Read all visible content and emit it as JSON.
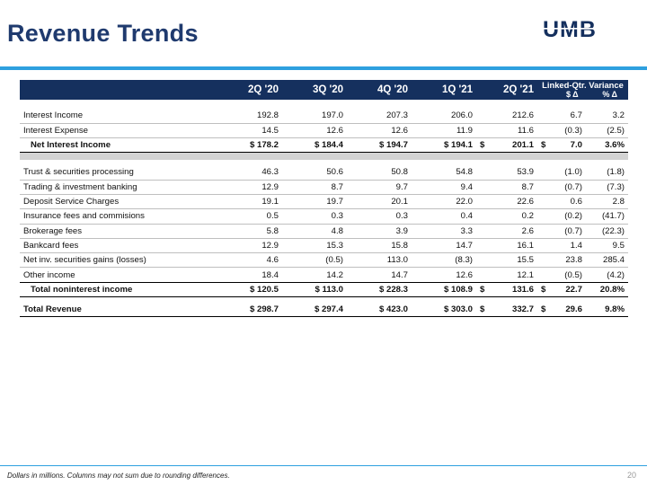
{
  "slide": {
    "title": "Revenue Trends",
    "logo_text": "UMB",
    "footnote": "Dollars in millions. Columns may not sum due to rounding differences.",
    "page_number": "20"
  },
  "colors": {
    "title": "#1f3a6e",
    "header_bg": "#15305e",
    "accent_rule": "#2ea0df",
    "gray_band": "#d3d3d3"
  },
  "table": {
    "columns": [
      "2Q '20",
      "3Q '20",
      "4Q '20",
      "1Q '21",
      "2Q '21"
    ],
    "variance_header": "Linked-Qtr. Variance",
    "variance_sub": [
      "$ Δ",
      "% Δ"
    ],
    "rows": {
      "interest_income": {
        "label": "Interest Income",
        "v": [
          "192.8",
          "197.0",
          "207.3",
          "206.0",
          "212.6"
        ],
        "d": "6.7",
        "p": "3.2"
      },
      "interest_expense": {
        "label": "Interest Expense",
        "v": [
          "14.5",
          "12.6",
          "12.6",
          "11.9",
          "11.6"
        ],
        "d": "(0.3)",
        "p": "(2.5)"
      },
      "net_interest_income": {
        "label": "Net Interest Income",
        "v": [
          "$ 178.2",
          "$ 184.4",
          "$ 194.7",
          "$ 194.1"
        ],
        "cur_sym": "$",
        "cur": "201.1",
        "d_sym": "$",
        "d": "7.0",
        "p": "3.6%"
      },
      "trust": {
        "label": "Trust & securities processing",
        "v": [
          "46.3",
          "50.6",
          "50.8",
          "54.8",
          "53.9"
        ],
        "d": "(1.0)",
        "p": "(1.8)"
      },
      "trading": {
        "label": "Trading & investment banking",
        "v": [
          "12.9",
          "8.7",
          "9.7",
          "9.4",
          "8.7"
        ],
        "d": "(0.7)",
        "p": "(7.3)"
      },
      "deposit": {
        "label": "Deposit Service Charges",
        "v": [
          "19.1",
          "19.7",
          "20.1",
          "22.0",
          "22.6"
        ],
        "d": "0.6",
        "p": "2.8"
      },
      "insurance": {
        "label": "Insurance fees and commisions",
        "v": [
          "0.5",
          "0.3",
          "0.3",
          "0.4",
          "0.2"
        ],
        "d": "(0.2)",
        "p": "(41.7)"
      },
      "brokerage": {
        "label": "Brokerage fees",
        "v": [
          "5.8",
          "4.8",
          "3.9",
          "3.3",
          "2.6"
        ],
        "d": "(0.7)",
        "p": "(22.3)"
      },
      "bankcard": {
        "label": "Bankcard fees",
        "v": [
          "12.9",
          "15.3",
          "15.8",
          "14.7",
          "16.1"
        ],
        "d": "1.4",
        "p": "9.5"
      },
      "securities_gains": {
        "label": "Net inv. securities gains (losses)",
        "v": [
          "4.6",
          "(0.5)",
          "113.0",
          "(8.3)",
          "15.5"
        ],
        "d": "23.8",
        "p": "285.4"
      },
      "other": {
        "label": "Other income",
        "v": [
          "18.4",
          "14.2",
          "14.7",
          "12.6",
          "12.1"
        ],
        "d": "(0.5)",
        "p": "(4.2)"
      },
      "total_nonint": {
        "label": "Total noninterest income",
        "v": [
          "$ 120.5",
          "$ 113.0",
          "$ 228.3",
          "$ 108.9"
        ],
        "cur_sym": "$",
        "cur": "131.6",
        "d_sym": "$",
        "d": "22.7",
        "p": "20.8%"
      },
      "total_revenue": {
        "label": "Total Revenue",
        "v": [
          "$ 298.7",
          "$ 297.4",
          "$ 423.0",
          "$ 303.0"
        ],
        "cur_sym": "$",
        "cur": "332.7",
        "d_sym": "$",
        "d": "29.6",
        "p": "9.8%"
      }
    }
  }
}
